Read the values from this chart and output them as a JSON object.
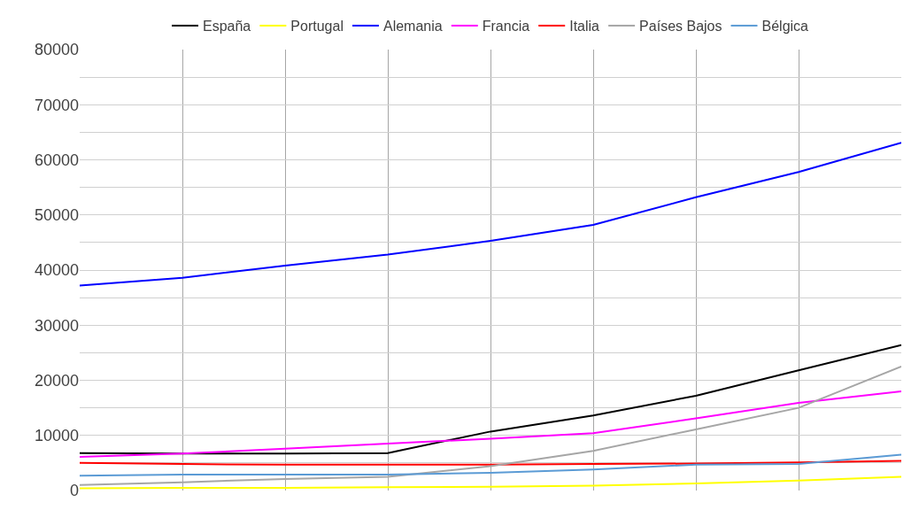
{
  "chart_data": {
    "type": "line",
    "categories": [
      null,
      null,
      null,
      null,
      null,
      null,
      null,
      null,
      null
    ],
    "series": [
      {
        "name": "España",
        "color": "#000000",
        "values": [
          6800,
          6700,
          6700,
          6800,
          10700,
          13600,
          17200,
          21800,
          26400
        ]
      },
      {
        "name": "Portugal",
        "color": "#ffff00",
        "values": [
          400,
          500,
          500,
          600,
          700,
          900,
          1300,
          1800,
          2500
        ]
      },
      {
        "name": "Alemania",
        "color": "#0000ff",
        "values": [
          37200,
          38600,
          40800,
          42800,
          45300,
          48200,
          53200,
          57800,
          63100
        ]
      },
      {
        "name": "Francia",
        "color": "#ff00ff",
        "values": [
          6100,
          6700,
          7600,
          8500,
          9400,
          10400,
          13100,
          15900,
          18000
        ]
      },
      {
        "name": "Italia",
        "color": "#ff0000",
        "values": [
          5000,
          4800,
          4700,
          4700,
          4700,
          4800,
          4900,
          5100,
          5400
        ]
      },
      {
        "name": "Países Bajos",
        "color": "#a6a6a6",
        "values": [
          1000,
          1500,
          2100,
          2500,
          4400,
          7200,
          11100,
          15000,
          22500
        ]
      },
      {
        "name": "Bélgica",
        "color": "#5b9bd5",
        "values": [
          2700,
          2900,
          2900,
          2900,
          3200,
          3800,
          4700,
          4800,
          6500
        ]
      }
    ],
    "ylim": [
      0,
      80000
    ],
    "yticks": [
      0,
      {
        "value": 5000,
        "label": null
      },
      10000,
      {
        "value": 15000,
        "label": null
      },
      20000,
      {
        "value": 25000,
        "label": null
      },
      30000,
      {
        "value": 35000,
        "label": null
      },
      40000,
      {
        "value": 45000,
        "label": null
      },
      50000,
      {
        "value": 55000,
        "label": null
      },
      60000,
      {
        "value": 65000,
        "label": null
      },
      70000,
      {
        "value": 75000,
        "label": null
      },
      80000
    ],
    "grid": true,
    "legend": "top",
    "marker": "none",
    "line_style": "solid"
  }
}
